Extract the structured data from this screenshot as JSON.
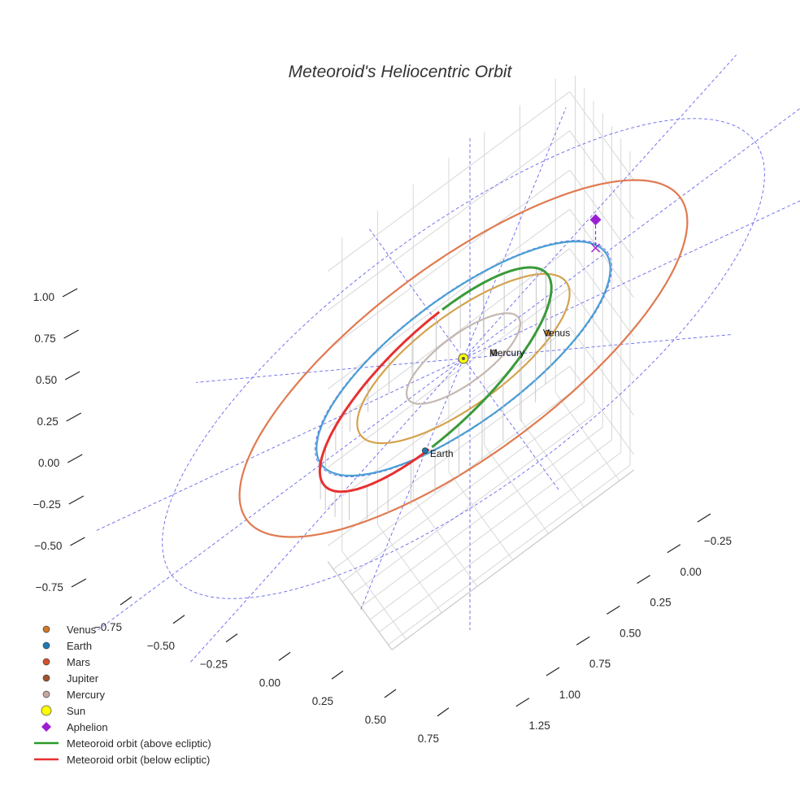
{
  "chart_data": {
    "type": "scatter3d",
    "title": "Meteoroid's Heliocentric Orbit",
    "axes": {
      "x_ticks": [
        "−0.75",
        "−0.50",
        "−0.25",
        "0.00",
        "0.25",
        "0.50",
        "0.75"
      ],
      "y_ticks": [
        "−0.25",
        "0.00",
        "0.25",
        "0.50",
        "0.75",
        "1.00",
        "1.25"
      ],
      "z_ticks": [
        "1.00",
        "0.75",
        "0.50",
        "0.25",
        "0.00",
        "−0.25",
        "−0.50",
        "−0.75"
      ],
      "x_range": [
        -0.85,
        0.85
      ],
      "y_range": [
        -0.4,
        1.35
      ],
      "z_range": [
        -0.85,
        1.15
      ]
    },
    "orbits": [
      {
        "name": "Mercury",
        "color": "#c4b8b0",
        "radius_au": 0.387
      },
      {
        "name": "Venus",
        "color": "#d4a24c",
        "radius_au": 0.723
      },
      {
        "name": "Earth",
        "color": "#4a9fd4",
        "radius_au": 1.0
      },
      {
        "name": "Mars",
        "color": "#e07a50",
        "radius_au": 1.524
      }
    ],
    "bodies": [
      {
        "name": "Mercury",
        "label": "Mercury",
        "color": "#a89a92",
        "x": -0.16,
        "y": 0.22,
        "z": 0.0
      },
      {
        "name": "Venus",
        "label": "Venus",
        "color": "#c98a2e",
        "x": -0.47,
        "y": 0.48,
        "z": 0.0
      },
      {
        "name": "Earth",
        "label": "Earth",
        "color": "#1f77b4",
        "x": 0.48,
        "y": 0.82,
        "z": 0.0
      },
      {
        "name": "Sun",
        "label": "",
        "color": "#ffff00",
        "x": 0.0,
        "y": 0.0,
        "z": 0.0
      }
    ],
    "aphelion": {
      "x": -0.97,
      "y": -0.16,
      "z": 0.18,
      "color": "#9b1fd1"
    },
    "meteoroid": {
      "above_color": "#3a9a3a",
      "below_color": "#e83030",
      "above_label": "Meteoroid orbit (above ecliptic)",
      "below_label": "Meteoroid orbit (below ecliptic)"
    },
    "legend": [
      {
        "label": "Venus",
        "symbol": "circle",
        "color": "#d0782a"
      },
      {
        "label": "Earth",
        "symbol": "circle",
        "color": "#1f77b4"
      },
      {
        "label": "Mars",
        "symbol": "circle",
        "color": "#d4502a"
      },
      {
        "label": "Jupiter",
        "symbol": "circle",
        "color": "#a0522d"
      },
      {
        "label": "Mercury",
        "symbol": "circle",
        "color": "#c4a8a0"
      },
      {
        "label": "Sun",
        "symbol": "circle-big",
        "color": "#ffff00"
      },
      {
        "label": "Aphelion",
        "symbol": "diamond",
        "color": "#9b1fd1"
      },
      {
        "label": "Meteoroid orbit (above ecliptic)",
        "symbol": "line",
        "color": "#2a9a2a"
      },
      {
        "label": "Meteoroid orbit (below ecliptic)",
        "symbol": "line",
        "color": "#e83030"
      }
    ],
    "reference_grid_color": "#6666ee"
  }
}
